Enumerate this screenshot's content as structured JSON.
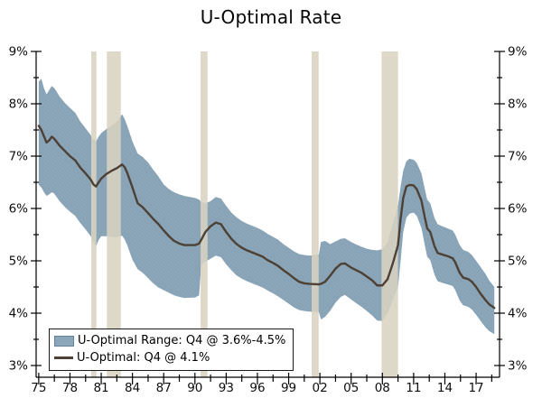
{
  "chart_data": {
    "type": "line",
    "title": "U-Optimal Rate",
    "xlabel": "",
    "ylabel": "",
    "xlim": [
      1974.75,
      2019.25
    ],
    "ylim": [
      3,
      9
    ],
    "grid": false,
    "legend_position": "bottom-left",
    "legend": [
      "U-Optimal Range: Q4 @ 3.6%-4.5%",
      "U-Optimal: Q4 @ 4.1%"
    ],
    "x_ticks": [
      {
        "label": "75",
        "year": 1975
      },
      {
        "label": "78",
        "year": 1978
      },
      {
        "label": "81",
        "year": 1981
      },
      {
        "label": "84",
        "year": 1984
      },
      {
        "label": "87",
        "year": 1987
      },
      {
        "label": "90",
        "year": 1990
      },
      {
        "label": "93",
        "year": 1993
      },
      {
        "label": "96",
        "year": 1996
      },
      {
        "label": "99",
        "year": 1999
      },
      {
        "label": "02",
        "year": 2002
      },
      {
        "label": "05",
        "year": 2005
      },
      {
        "label": "08",
        "year": 2008
      },
      {
        "label": "11",
        "year": 2011
      },
      {
        "label": "14",
        "year": 2014
      },
      {
        "label": "17",
        "year": 2017
      }
    ],
    "y_ticks": [
      {
        "label": "3%",
        "value": 3
      },
      {
        "label": "4%",
        "value": 4
      },
      {
        "label": "5%",
        "value": 5
      },
      {
        "label": "6%",
        "value": 6
      },
      {
        "label": "7%",
        "value": 7
      },
      {
        "label": "8%",
        "value": 8
      },
      {
        "label": "9%",
        "value": 9
      }
    ],
    "recession_bands": [
      [
        1980.04,
        1980.54
      ],
      [
        1981.54,
        1982.88
      ],
      [
        1990.54,
        1991.21
      ],
      [
        2001.21,
        2001.88
      ],
      [
        2007.92,
        2009.5
      ]
    ],
    "point_format": [
      "year",
      "u_optimal_line",
      "range_upper",
      "range_lower"
    ],
    "points": [
      [
        1975.0,
        7.58,
        8.42,
        6.45
      ],
      [
        1975.25,
        7.5,
        8.48,
        6.4
      ],
      [
        1975.5,
        7.38,
        8.3,
        6.31
      ],
      [
        1975.75,
        7.26,
        8.18,
        6.24
      ],
      [
        1976.0,
        7.3,
        8.26,
        6.27
      ],
      [
        1976.25,
        7.37,
        8.34,
        6.31
      ],
      [
        1976.5,
        7.33,
        8.3,
        6.28
      ],
      [
        1977.0,
        7.2,
        8.14,
        6.14
      ],
      [
        1977.5,
        7.1,
        8.02,
        6.03
      ],
      [
        1978.0,
        7.0,
        7.92,
        5.94
      ],
      [
        1978.5,
        6.92,
        7.83,
        5.86
      ],
      [
        1979.0,
        6.78,
        7.66,
        5.72
      ],
      [
        1979.5,
        6.67,
        7.53,
        5.6
      ],
      [
        1980.0,
        6.55,
        7.4,
        5.47
      ],
      [
        1980.25,
        6.46,
        7.32,
        5.34
      ],
      [
        1980.5,
        6.42,
        7.28,
        5.27
      ],
      [
        1980.75,
        6.5,
        7.37,
        5.4
      ],
      [
        1981.0,
        6.57,
        7.44,
        5.47
      ],
      [
        1981.5,
        6.66,
        7.52,
        5.47
      ],
      [
        1982.0,
        6.72,
        7.58,
        5.46
      ],
      [
        1982.5,
        6.77,
        7.66,
        5.45
      ],
      [
        1983.0,
        6.84,
        7.8,
        5.48
      ],
      [
        1983.25,
        6.79,
        7.71,
        5.41
      ],
      [
        1983.5,
        6.68,
        7.58,
        5.3
      ],
      [
        1984.0,
        6.4,
        7.28,
        5.02
      ],
      [
        1984.5,
        6.1,
        7.05,
        4.84
      ],
      [
        1985.0,
        6.02,
        6.98,
        4.77
      ],
      [
        1985.5,
        5.91,
        6.88,
        4.67
      ],
      [
        1986.0,
        5.8,
        6.74,
        4.57
      ],
      [
        1986.5,
        5.7,
        6.61,
        4.49
      ],
      [
        1987.0,
        5.58,
        6.46,
        4.44
      ],
      [
        1987.5,
        5.47,
        6.37,
        4.39
      ],
      [
        1988.0,
        5.38,
        6.31,
        4.34
      ],
      [
        1988.5,
        5.33,
        6.27,
        4.31
      ],
      [
        1989.0,
        5.3,
        6.24,
        4.29
      ],
      [
        1990.0,
        5.3,
        6.2,
        4.3
      ],
      [
        1990.4,
        5.33,
        6.17,
        4.34
      ],
      [
        1990.6,
        5.4,
        6.12,
        4.92
      ],
      [
        1991.0,
        5.55,
        6.1,
        4.98
      ],
      [
        1991.5,
        5.66,
        6.14,
        5.04
      ],
      [
        1992.0,
        5.73,
        6.22,
        5.1
      ],
      [
        1992.5,
        5.7,
        6.19,
        5.07
      ],
      [
        1993.0,
        5.55,
        6.05,
        4.93
      ],
      [
        1993.5,
        5.42,
        5.92,
        4.82
      ],
      [
        1994.0,
        5.32,
        5.83,
        4.72
      ],
      [
        1994.5,
        5.25,
        5.76,
        4.66
      ],
      [
        1995.0,
        5.2,
        5.71,
        4.61
      ],
      [
        1995.5,
        5.16,
        5.67,
        4.57
      ],
      [
        1996.0,
        5.12,
        5.63,
        4.53
      ],
      [
        1996.5,
        5.08,
        5.58,
        4.49
      ],
      [
        1997.0,
        5.01,
        5.51,
        4.43
      ],
      [
        1997.5,
        4.96,
        5.46,
        4.38
      ],
      [
        1998.0,
        4.9,
        5.4,
        4.32
      ],
      [
        1998.5,
        4.82,
        5.32,
        4.25
      ],
      [
        1999.0,
        4.75,
        5.25,
        4.18
      ],
      [
        1999.5,
        4.67,
        5.18,
        4.11
      ],
      [
        2000.0,
        4.6,
        5.13,
        4.06
      ],
      [
        2000.5,
        4.57,
        5.11,
        4.04
      ],
      [
        2001.0,
        4.56,
        5.1,
        4.03
      ],
      [
        2001.9,
        4.55,
        5.12,
        4.02
      ],
      [
        2002.1,
        4.56,
        5.36,
        3.88
      ],
      [
        2002.5,
        4.6,
        5.38,
        3.93
      ],
      [
        2003.0,
        4.72,
        5.32,
        4.05
      ],
      [
        2003.5,
        4.85,
        5.37,
        4.2
      ],
      [
        2004.0,
        4.94,
        5.42,
        4.31
      ],
      [
        2004.4,
        4.95,
        5.43,
        4.35
      ],
      [
        2005.0,
        4.87,
        5.36,
        4.26
      ],
      [
        2005.5,
        4.82,
        5.31,
        4.19
      ],
      [
        2006.0,
        4.77,
        5.27,
        4.12
      ],
      [
        2006.5,
        4.7,
        5.23,
        4.04
      ],
      [
        2007.0,
        4.63,
        5.21,
        3.96
      ],
      [
        2007.5,
        4.53,
        5.2,
        3.86
      ],
      [
        2008.0,
        4.53,
        5.22,
        3.85
      ],
      [
        2008.5,
        4.65,
        5.36,
        4.0
      ],
      [
        2009.0,
        4.95,
        5.7,
        4.25
      ],
      [
        2009.5,
        5.3,
        6.05,
        4.5
      ],
      [
        2009.75,
        5.8,
        6.42,
        5.0
      ],
      [
        2010.0,
        6.2,
        6.72,
        5.55
      ],
      [
        2010.3,
        6.42,
        6.9,
        5.82
      ],
      [
        2010.6,
        6.45,
        6.95,
        5.9
      ],
      [
        2011.0,
        6.44,
        6.93,
        5.92
      ],
      [
        2011.3,
        6.37,
        6.87,
        5.86
      ],
      [
        2011.75,
        6.15,
        6.67,
        5.63
      ],
      [
        2012.0,
        5.9,
        6.44,
        5.37
      ],
      [
        2012.3,
        5.62,
        6.17,
        5.08
      ],
      [
        2012.6,
        5.55,
        6.1,
        5.01
      ],
      [
        2013.0,
        5.28,
        5.82,
        4.74
      ],
      [
        2013.3,
        5.15,
        5.7,
        4.61
      ],
      [
        2013.75,
        5.12,
        5.66,
        4.58
      ],
      [
        2014.25,
        5.09,
        5.62,
        4.55
      ],
      [
        2014.75,
        5.05,
        5.58,
        4.52
      ],
      [
        2015.0,
        4.97,
        5.5,
        4.44
      ],
      [
        2015.4,
        4.78,
        5.31,
        4.25
      ],
      [
        2015.75,
        4.68,
        5.21,
        4.15
      ],
      [
        2016.25,
        4.65,
        5.17,
        4.12
      ],
      [
        2016.6,
        4.6,
        5.11,
        4.07
      ],
      [
        2017.0,
        4.5,
        5.0,
        3.97
      ],
      [
        2017.4,
        4.38,
        4.89,
        3.86
      ],
      [
        2017.9,
        4.25,
        4.75,
        3.73
      ],
      [
        2018.25,
        4.17,
        4.63,
        3.66
      ],
      [
        2018.75,
        4.1,
        4.5,
        3.6
      ]
    ],
    "colors": {
      "band": "#8ba6b9",
      "band_dot": "#7b97ac",
      "line": "#4d4034",
      "recession_bar": "#d8d3c0",
      "axis": "#000000",
      "text": "#0e0e0e",
      "background": "#ffffff"
    }
  }
}
